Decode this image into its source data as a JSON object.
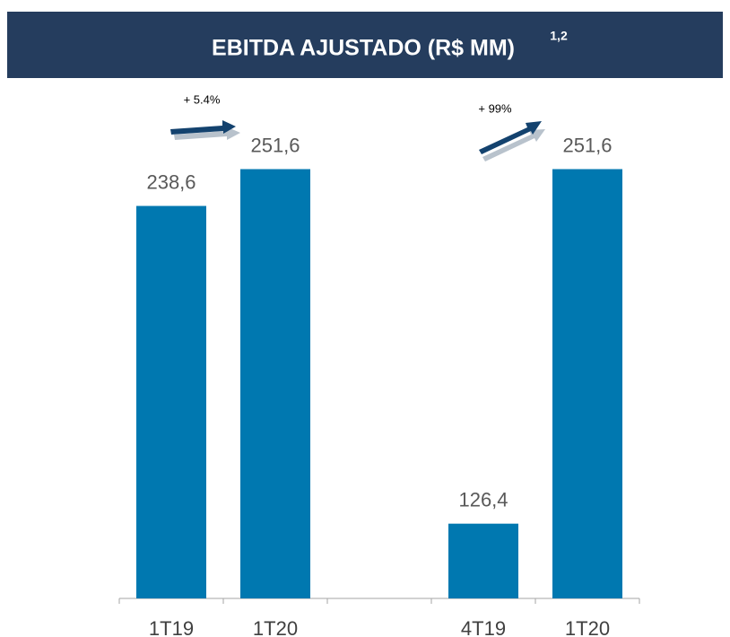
{
  "chart_data": {
    "type": "bar",
    "title": "EBITDA AJUSTADO (R$ MM)",
    "title_superscript": "1,2",
    "categories": [
      "1T19",
      "1T20",
      null,
      "4T19",
      "1T20"
    ],
    "values": [
      238.6,
      251.6,
      null,
      126.4,
      251.6
    ],
    "value_labels": [
      "238,6",
      "251,6",
      null,
      "126,4",
      "251,6"
    ],
    "color": "#0078b0",
    "ylim": [
      100,
      260
    ],
    "annotations": [
      "+ 5.4%",
      "+ 99%"
    ]
  }
}
